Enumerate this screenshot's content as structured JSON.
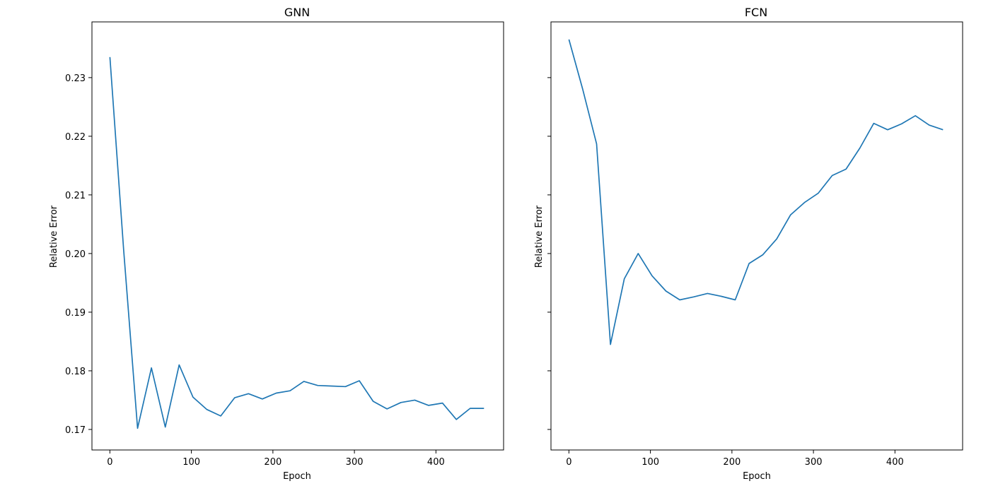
{
  "chart_data": [
    {
      "type": "line",
      "title": "GNN",
      "xlabel": "Epoch",
      "ylabel": "Relative Error",
      "xlim": [
        -22,
        483
      ],
      "ylim": [
        0.1665,
        0.2395
      ],
      "xticks": [
        0,
        100,
        200,
        300,
        400
      ],
      "yticks": [
        0.17,
        0.18,
        0.19,
        0.2,
        0.21,
        0.22,
        0.23
      ],
      "ytick_labels": [
        "0.17",
        "0.18",
        "0.19",
        "0.20",
        "0.21",
        "0.22",
        "0.23"
      ],
      "show_ytick_labels": true,
      "grid": false,
      "color": "#1f77b4",
      "series": [
        {
          "x": [
            0,
            17,
            34,
            51,
            68,
            85,
            102,
            119,
            136,
            153,
            170,
            187,
            204,
            221,
            238,
            255,
            272,
            289,
            306,
            323,
            340,
            357,
            374,
            391,
            408,
            425,
            442,
            459
          ],
          "y": [
            0.2335,
            0.2005,
            0.1702,
            0.1805,
            0.1704,
            0.181,
            0.1755,
            0.1734,
            0.1723,
            0.1754,
            0.1761,
            0.1752,
            0.1762,
            0.1766,
            0.1782,
            0.1775,
            0.1774,
            0.1773,
            0.1783,
            0.1748,
            0.1735,
            0.1746,
            0.175,
            0.1741,
            0.1745,
            0.1717,
            0.1736,
            0.1736
          ]
        }
      ]
    },
    {
      "type": "line",
      "title": "FCN",
      "xlabel": "Epoch",
      "ylabel": "Relative Error",
      "xlim": [
        -22,
        483
      ],
      "ylim": [
        0.1665,
        0.2395
      ],
      "xticks": [
        0,
        100,
        200,
        300,
        400
      ],
      "yticks": [
        0.17,
        0.18,
        0.19,
        0.2,
        0.21,
        0.22,
        0.23
      ],
      "ytick_labels": [
        "",
        "",
        "",
        "",
        "",
        "",
        ""
      ],
      "show_ytick_labels": false,
      "grid": false,
      "color": "#1f77b4",
      "series": [
        {
          "x": [
            0,
            17,
            34,
            51,
            68,
            85,
            102,
            119,
            136,
            153,
            170,
            187,
            204,
            221,
            238,
            255,
            272,
            289,
            306,
            323,
            340,
            357,
            374,
            391,
            408,
            425,
            442,
            459
          ],
          "y": [
            0.2365,
            0.228,
            0.2187,
            0.1845,
            0.1957,
            0.2,
            0.1962,
            0.1936,
            0.1921,
            0.1926,
            0.1932,
            0.1927,
            0.1921,
            0.1983,
            0.1998,
            0.2025,
            0.2066,
            0.2087,
            0.2103,
            0.2133,
            0.2144,
            0.218,
            0.2222,
            0.2211,
            0.2221,
            0.2235,
            0.2219,
            0.2211
          ]
        }
      ]
    }
  ]
}
